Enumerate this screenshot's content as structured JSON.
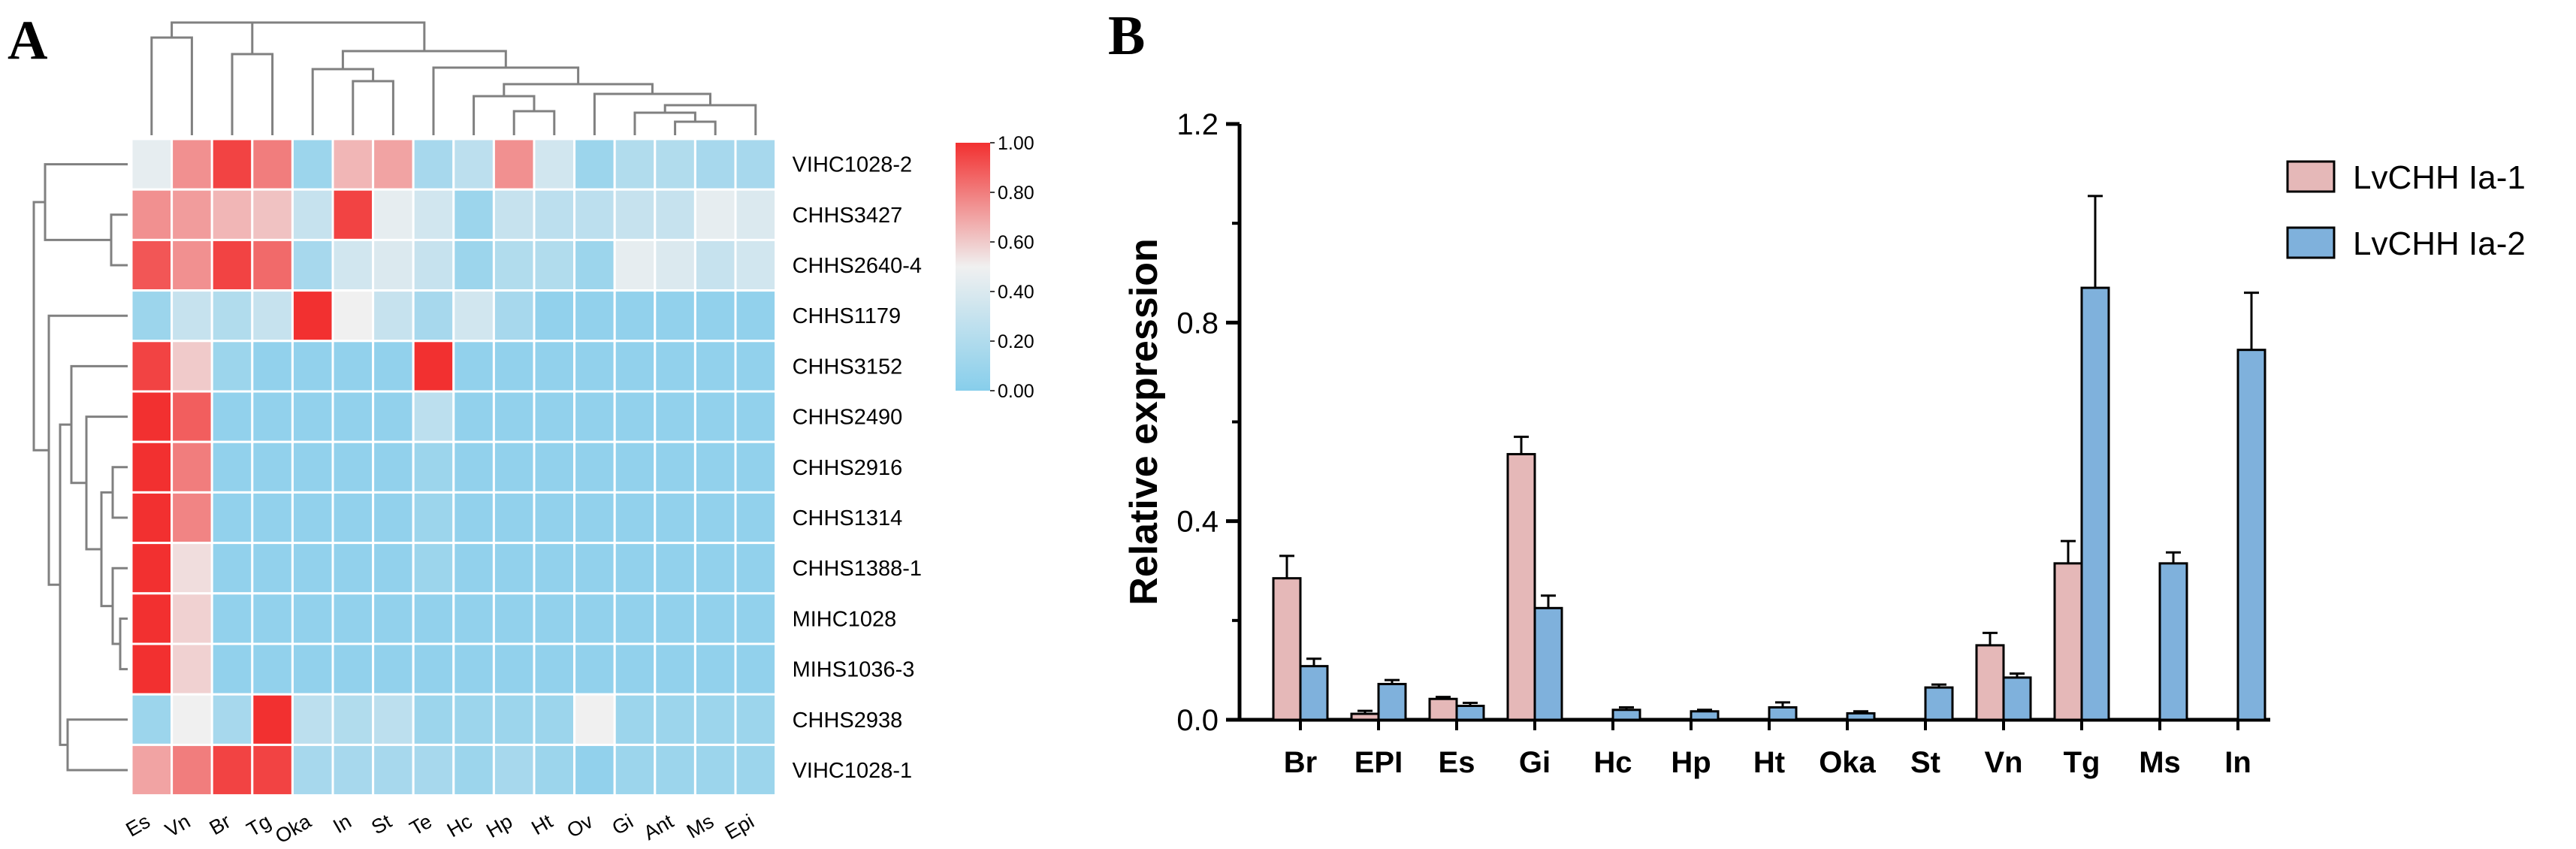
{
  "panel_a_label": "A",
  "panel_b_label": "B",
  "chart_data": [
    {
      "type": "heatmap",
      "title": "",
      "columns": [
        "Es",
        "Vn",
        "Br",
        "Tg",
        "Oka",
        "In",
        "St",
        "Te",
        "Hc",
        "Hp",
        "Ht",
        "Ov",
        "Gi",
        "Ant",
        "Ms",
        "Epi"
      ],
      "rows": [
        "VIHC1028-2",
        "CHHS3427",
        "CHHS2640-4",
        "CHHS1179",
        "CHHS3152",
        "CHHS2490",
        "CHHS2916",
        "CHHS1314",
        "CHHS1388-1",
        "MIHC1028",
        "MIHS1036-3",
        "CHHS2938",
        "VIHC1028-1"
      ],
      "values": [
        [
          0.45,
          0.75,
          0.95,
          0.8,
          0.1,
          0.65,
          0.7,
          0.15,
          0.25,
          0.75,
          0.35,
          0.1,
          0.2,
          0.2,
          0.15,
          0.15
        ],
        [
          0.75,
          0.72,
          0.65,
          0.62,
          0.3,
          0.95,
          0.45,
          0.35,
          0.1,
          0.3,
          0.25,
          0.25,
          0.3,
          0.3,
          0.45,
          0.4
        ],
        [
          0.9,
          0.75,
          0.95,
          0.85,
          0.15,
          0.35,
          0.4,
          0.3,
          0.1,
          0.2,
          0.2,
          0.1,
          0.45,
          0.4,
          0.3,
          0.35
        ],
        [
          0.1,
          0.3,
          0.2,
          0.3,
          1.0,
          0.5,
          0.3,
          0.15,
          0.35,
          0.15,
          0.05,
          0.05,
          0.05,
          0.05,
          0.05,
          0.05
        ],
        [
          0.95,
          0.6,
          0.1,
          0.05,
          0.05,
          0.05,
          0.05,
          1.0,
          0.05,
          0.05,
          0.05,
          0.05,
          0.05,
          0.05,
          0.05,
          0.05
        ],
        [
          1.0,
          0.88,
          0.05,
          0.05,
          0.05,
          0.05,
          0.05,
          0.25,
          0.05,
          0.05,
          0.05,
          0.05,
          0.05,
          0.05,
          0.05,
          0.05
        ],
        [
          1.0,
          0.8,
          0.05,
          0.05,
          0.05,
          0.05,
          0.05,
          0.1,
          0.05,
          0.05,
          0.05,
          0.05,
          0.05,
          0.05,
          0.05,
          0.05
        ],
        [
          1.0,
          0.78,
          0.05,
          0.05,
          0.05,
          0.05,
          0.05,
          0.1,
          0.05,
          0.05,
          0.05,
          0.05,
          0.05,
          0.05,
          0.05,
          0.05
        ],
        [
          1.0,
          0.55,
          0.05,
          0.05,
          0.05,
          0.05,
          0.05,
          0.1,
          0.05,
          0.05,
          0.05,
          0.05,
          0.05,
          0.05,
          0.05,
          0.05
        ],
        [
          1.0,
          0.58,
          0.05,
          0.05,
          0.05,
          0.05,
          0.05,
          0.05,
          0.05,
          0.05,
          0.05,
          0.05,
          0.05,
          0.05,
          0.05,
          0.05
        ],
        [
          1.0,
          0.58,
          0.05,
          0.05,
          0.05,
          0.05,
          0.05,
          0.05,
          0.05,
          0.05,
          0.05,
          0.05,
          0.05,
          0.05,
          0.05,
          0.05
        ],
        [
          0.1,
          0.5,
          0.15,
          1.0,
          0.25,
          0.2,
          0.25,
          0.1,
          0.1,
          0.1,
          0.1,
          0.5,
          0.1,
          0.1,
          0.1,
          0.1
        ],
        [
          0.7,
          0.8,
          0.95,
          0.95,
          0.15,
          0.15,
          0.15,
          0.15,
          0.1,
          0.15,
          0.1,
          0.05,
          0.1,
          0.1,
          0.1,
          0.1
        ]
      ],
      "color_range": [
        0,
        1
      ],
      "colormap": [
        "#87ceeb",
        "#f0f0f0",
        "#f23030"
      ],
      "colorbar_ticks": [
        "1.00",
        "0.80",
        "0.60",
        "0.40",
        "0.20",
        "0.00"
      ],
      "row_dendrogram": true,
      "column_dendrogram": true
    },
    {
      "type": "bar",
      "title": "",
      "categories": [
        "Br",
        "EPI",
        "Es",
        "Gi",
        "Hc",
        "Hp",
        "Ht",
        "Oka",
        "St",
        "Vn",
        "Tg",
        "Ms",
        "In"
      ],
      "series": [
        {
          "name": "LvCHH Ia-1",
          "color": "#e5b8b8",
          "values": [
            0.285,
            0.012,
            0.042,
            0.535,
            0.0,
            0.0,
            0.0,
            0.0,
            0.0,
            0.15,
            0.315,
            0.0,
            0.0
          ],
          "errors": [
            0.045,
            0.006,
            0.004,
            0.035,
            0,
            0,
            0,
            0,
            0,
            0.025,
            0.045,
            0,
            0
          ]
        },
        {
          "name": "LvCHH Ia-2",
          "color": "#7fb1dc",
          "values": [
            0.108,
            0.072,
            0.028,
            0.225,
            0.02,
            0.017,
            0.025,
            0.013,
            0.065,
            0.085,
            0.87,
            0.315,
            0.745
          ],
          "errors": [
            0.015,
            0.008,
            0.006,
            0.025,
            0.005,
            0.003,
            0.01,
            0.004,
            0.006,
            0.008,
            0.185,
            0.022,
            0.115
          ]
        }
      ],
      "xlabel": "",
      "ylabel": "Relative expression",
      "ylim": [
        0,
        1.2
      ],
      "yticks": [
        "0.0",
        "0.4",
        "0.8",
        "1.2"
      ],
      "legend": "top-right",
      "grid": false
    }
  ]
}
